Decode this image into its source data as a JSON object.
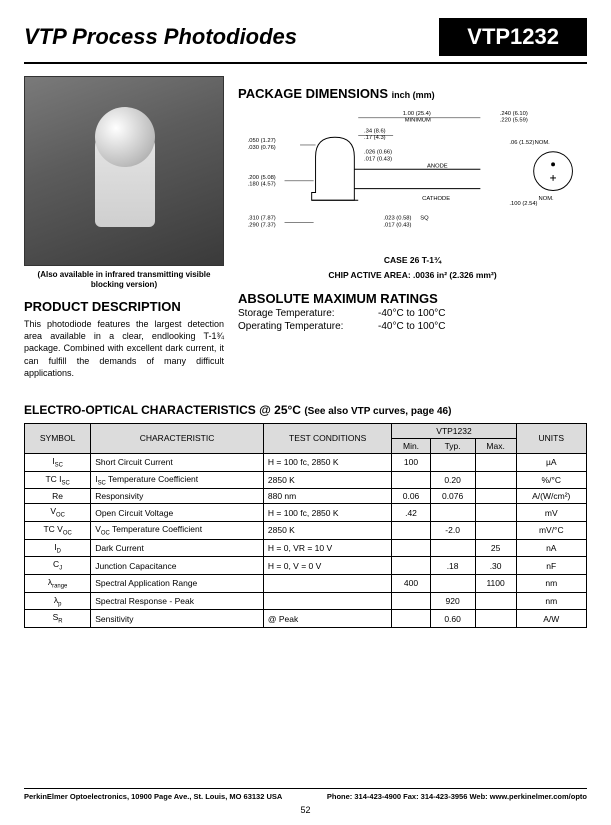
{
  "header": {
    "title": "VTP Process Photodiodes",
    "part": "VTP1232"
  },
  "photo_caption": "(Also available in infrared transmitting visible blocking version)",
  "product_description": {
    "heading": "PRODUCT DESCRIPTION",
    "body": "This photodiode features the largest detection area available in a clear, endlooking T-1¾ package. Combined with excellent dark current, it can fulfill the demands of many difficult applications."
  },
  "package_dimensions": {
    "heading": "PACKAGE DIMENSIONS",
    "unit_label": "inch (mm)",
    "labels": {
      "d1": ".050 (1.27)",
      "d1b": ".030 (0.76)",
      "d2": ".200 (5.08)",
      "d2b": ".180 (4.57)",
      "d3": ".310 (7.87)",
      "d3b": ".290 (7.37)",
      "d4": "1.00 (25.4)",
      "d4b": "MINIMUM",
      "d5": ".34 (8.6)",
      "d5b": ".17 (4.3)",
      "d6": ".026 (0.66)",
      "d6b": ".017 (0.43)",
      "d7": ".023 (0.58)",
      "d7b": ".017 (0.43)",
      "d8": ".240 (6.10)",
      "d8b": ".220 (5.59)",
      "d9": ".06 (1.52)",
      "d9n": "NOM.",
      "d10": ".100 (2.54)",
      "d10n": "NOM.",
      "sq": "SQ",
      "anode": "ANODE",
      "cathode": "CATHODE"
    },
    "case_line_1": "CASE 26    T-1¾",
    "case_line_2": "CHIP ACTIVE AREA: .0036 in² (2.326 mm²)"
  },
  "abs_max": {
    "heading": "ABSOLUTE MAXIMUM RATINGS",
    "rows": [
      {
        "label": "Storage Temperature:",
        "value": "-40°C to 100°C"
      },
      {
        "label": "Operating Temperature:",
        "value": "-40°C to 100°C"
      }
    ]
  },
  "electro": {
    "heading": "ELECTRO-OPTICAL CHARACTERISTICS @ 25°C",
    "subheading": "(See also VTP curves, page 46)",
    "columns": [
      "SYMBOL",
      "CHARACTERISTIC",
      "TEST CONDITIONS",
      "Min.",
      "Typ.",
      "Max.",
      "UNITS"
    ],
    "group_header": "VTP1232",
    "rows": [
      {
        "sym": "I_SC",
        "char": "Short Circuit Current",
        "cond": "H = 100 fc, 2850 K",
        "min": "100",
        "typ": "",
        "max": "",
        "units": "µA"
      },
      {
        "sym": "TC I_SC",
        "char": "I_SC Temperature Coefficient",
        "cond": "2850 K",
        "min": "",
        "typ": "0.20",
        "max": "",
        "units": "%/°C"
      },
      {
        "sym": "Re",
        "char": "Responsivity",
        "cond": "880 nm",
        "min": "0.06",
        "typ": "0.076",
        "max": "",
        "units": "A/(W/cm²)"
      },
      {
        "sym": "V_OC",
        "char": "Open Circuit Voltage",
        "cond": "H = 100 fc, 2850 K",
        "min": ".42",
        "typ": "",
        "max": "",
        "units": "mV"
      },
      {
        "sym": "TC V_OC",
        "char": "V_OC Temperature Coefficient",
        "cond": "2850 K",
        "min": "",
        "typ": "-2.0",
        "max": "",
        "units": "mV/°C"
      },
      {
        "sym": "I_D",
        "char": "Dark Current",
        "cond": "H = 0, VR = 10 V",
        "min": "",
        "typ": "",
        "max": "25",
        "units": "nA"
      },
      {
        "sym": "C_J",
        "char": "Junction Capacitance",
        "cond": "H = 0, V = 0 V",
        "min": "",
        "typ": ".18",
        "max": ".30",
        "units": "nF"
      },
      {
        "sym": "λ_range",
        "char": "Spectral Application Range",
        "cond": "",
        "min": "400",
        "typ": "",
        "max": "1100",
        "units": "nm"
      },
      {
        "sym": "λ_p",
        "char": "Spectral Response - Peak",
        "cond": "",
        "min": "",
        "typ": "920",
        "max": "",
        "units": "nm"
      },
      {
        "sym": "S_R",
        "char": "Sensitivity",
        "cond": "@ Peak",
        "min": "",
        "typ": "0.60",
        "max": "",
        "units": "A/W"
      }
    ]
  },
  "footer": {
    "left": "PerkinElmer Optoelectronics, 10900 Page Ave., St. Louis, MO 63132 USA",
    "right": "Phone: 314-423-4900 Fax: 314-423-3956 Web: www.perkinelmer.com/opto",
    "page": "52"
  },
  "colors": {
    "header_bg": "#dcdcdc",
    "black": "#000000"
  }
}
